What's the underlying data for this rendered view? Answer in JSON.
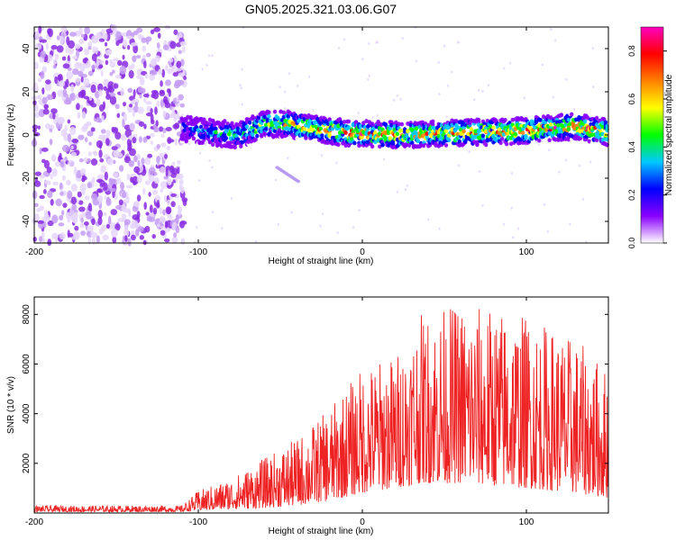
{
  "figure": {
    "title": "GN05.2025.321.03.06.G07"
  },
  "colors": {
    "series": "#ee2222",
    "axis": "#000000",
    "background": "#ffffff"
  },
  "chart_data": [
    {
      "type": "heatmap",
      "name": "spectrogram",
      "xlabel": "Height of straight line (km)",
      "ylabel": "Frequency (Hz)",
      "xlim": [
        -200,
        150
      ],
      "ylim": [
        -50,
        50
      ],
      "xticks": [
        -200,
        -100,
        0,
        100
      ],
      "xtick_labels": [
        "-200",
        "-100",
        "0",
        "100"
      ],
      "yticks": [
        -40,
        -20,
        0,
        20,
        40
      ],
      "ytick_labels": [
        "-40",
        "-20",
        "0",
        "20",
        "40"
      ],
      "colorbar": {
        "label": "Normalized spectral amplitude",
        "range": [
          0,
          0.9
        ],
        "ticks": [
          0.0,
          0.2,
          0.4,
          0.6,
          0.8
        ],
        "tick_labels": [
          "0.0",
          "0.2",
          "0.4",
          "0.6",
          "0.8"
        ],
        "colormap": [
          "#ffffff",
          "#8a00ff",
          "#0000ff",
          "#00c8ff",
          "#00ff00",
          "#ffff00",
          "#ff8000",
          "#ff0000",
          "#ff00c0"
        ]
      },
      "noise_region_km": [
        -200,
        -108
      ],
      "band_center_hz": [
        {
          "x": -110,
          "f": 3
        },
        {
          "x": -90,
          "f": 1
        },
        {
          "x": -75,
          "f": 0
        },
        {
          "x": -60,
          "f": 5
        },
        {
          "x": -45,
          "f": 5
        },
        {
          "x": -30,
          "f": 3
        },
        {
          "x": -10,
          "f": 1
        },
        {
          "x": 20,
          "f": 0
        },
        {
          "x": 60,
          "f": 1
        },
        {
          "x": 100,
          "f": 2
        },
        {
          "x": 130,
          "f": 4
        },
        {
          "x": 150,
          "f": 1
        }
      ],
      "band_halfwidth_hz": 4,
      "peak_amplitude": 0.85
    },
    {
      "type": "line",
      "name": "snr",
      "xlabel": "Height of straight line (km)",
      "ylabel": "SNR (10 * v/v)",
      "xlim": [
        -200,
        150
      ],
      "ylim": [
        0,
        8700
      ],
      "xticks": [
        -200,
        -100,
        0,
        100
      ],
      "xtick_labels": [
        "-200",
        "-100",
        "0",
        "100"
      ],
      "yticks": [
        2000,
        4000,
        6000,
        8000
      ],
      "ytick_labels": [
        "2000",
        "4000",
        "6000",
        "8000"
      ],
      "series": [
        {
          "name": "SNR",
          "envelope": [
            {
              "x": -200,
              "min": 50,
              "max": 300
            },
            {
              "x": -110,
              "min": 50,
              "max": 300
            },
            {
              "x": -100,
              "min": 100,
              "max": 900
            },
            {
              "x": -80,
              "min": 150,
              "max": 1400
            },
            {
              "x": -60,
              "min": 200,
              "max": 2200
            },
            {
              "x": -40,
              "min": 300,
              "max": 3000
            },
            {
              "x": -20,
              "min": 500,
              "max": 4200
            },
            {
              "x": 0,
              "min": 800,
              "max": 5900
            },
            {
              "x": 20,
              "min": 1000,
              "max": 6400
            },
            {
              "x": 35,
              "min": 1200,
              "max": 8000
            },
            {
              "x": 60,
              "min": 1200,
              "max": 8500
            },
            {
              "x": 100,
              "min": 1000,
              "max": 8000
            },
            {
              "x": 130,
              "min": 800,
              "max": 7000
            },
            {
              "x": 150,
              "min": 600,
              "max": 5800
            }
          ]
        }
      ]
    }
  ]
}
